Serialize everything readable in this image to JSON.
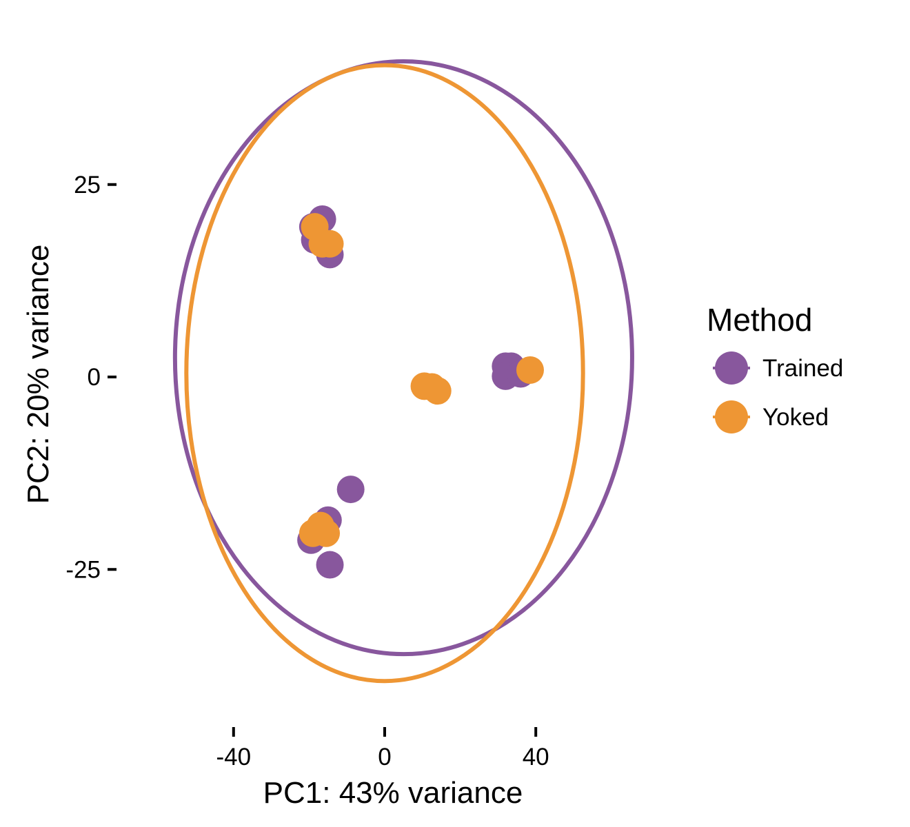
{
  "chart_data": {
    "type": "scatter",
    "xlabel": "PC1: 43% variance",
    "ylabel": "PC2: 20% variance",
    "xlim": [
      -60,
      63
    ],
    "ylim": [
      -38,
      43
    ],
    "xticks": [
      {
        "value": -40,
        "label": "-40"
      },
      {
        "value": 0,
        "label": "0"
      },
      {
        "value": 40,
        "label": "40"
      }
    ],
    "yticks": [
      {
        "value": 25,
        "label": "25"
      },
      {
        "value": 0,
        "label": "0"
      },
      {
        "value": -25,
        "label": "-25"
      }
    ],
    "grid": false,
    "legend": {
      "title": "Method",
      "placement": "right"
    },
    "series": [
      {
        "name": "Trained",
        "color": "#88579D",
        "points": [
          {
            "x": -19,
            "y": 19.5
          },
          {
            "x": -16.5,
            "y": 20.5
          },
          {
            "x": -18.5,
            "y": 17.8
          },
          {
            "x": -14.5,
            "y": 15.9
          },
          {
            "x": -9,
            "y": -14.6
          },
          {
            "x": -15,
            "y": -18.6
          },
          {
            "x": -19.5,
            "y": -21.2
          },
          {
            "x": -14.5,
            "y": -24.4
          },
          {
            "x": 32,
            "y": 1.4
          },
          {
            "x": 33.5,
            "y": 1.4
          },
          {
            "x": 32,
            "y": 0.1
          },
          {
            "x": 36,
            "y": 0.4
          }
        ],
        "ellipse": {
          "cx": 5,
          "cy": 2.5,
          "rx": 60.5,
          "ry": 38.5
        }
      },
      {
        "name": "Yoked",
        "color": "#EE9634",
        "points": [
          {
            "x": -18.5,
            "y": 19.5
          },
          {
            "x": -14.5,
            "y": 17.3
          },
          {
            "x": -16.5,
            "y": 17.3
          },
          {
            "x": -19,
            "y": -20.3
          },
          {
            "x": -15.5,
            "y": -20.3
          },
          {
            "x": -17,
            "y": -19.3
          },
          {
            "x": 10.5,
            "y": -1.2
          },
          {
            "x": 12.5,
            "y": -1.3
          },
          {
            "x": 14,
            "y": -1.8
          },
          {
            "x": 38.5,
            "y": 0.9
          }
        ],
        "ellipse": {
          "cx": 0,
          "cy": 0.5,
          "rx": 52.5,
          "ry": 40
        }
      }
    ]
  }
}
